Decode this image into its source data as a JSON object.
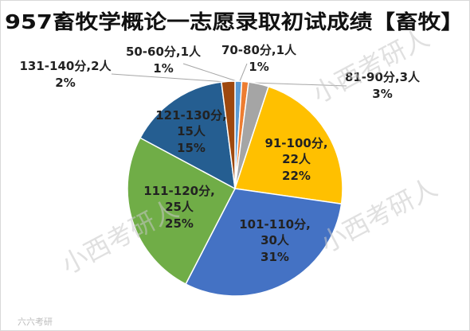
{
  "chart_data": {
    "type": "pie",
    "title": "957畜牧学概论一志愿录取初试成绩【畜牧】",
    "categories": [
      "50-60分",
      "70-80分",
      "81-90分",
      "91-100分",
      "101-110分",
      "111-120分",
      "121-130分",
      "131-140分"
    ],
    "values": [
      1,
      1,
      3,
      22,
      30,
      25,
      15,
      2
    ],
    "value_labels": [
      "1人",
      "1人",
      "3人",
      "22人",
      "30人",
      "25人",
      "15人",
      "2人"
    ],
    "label_separator": ",",
    "percentages": [
      1,
      1,
      3,
      22,
      31,
      25,
      15,
      2
    ],
    "percentage_labels": [
      "1%",
      "1%",
      "3%",
      "22%",
      "31%",
      "25%",
      "15%",
      "2%"
    ],
    "colors": [
      "#5b9bd5",
      "#ed7d31",
      "#a5a5a5",
      "#ffc000",
      "#4472c4",
      "#70ad47",
      "#255e91",
      "#9e480e"
    ],
    "watermark": "小西考研人",
    "footer_logo": "六六考研"
  }
}
